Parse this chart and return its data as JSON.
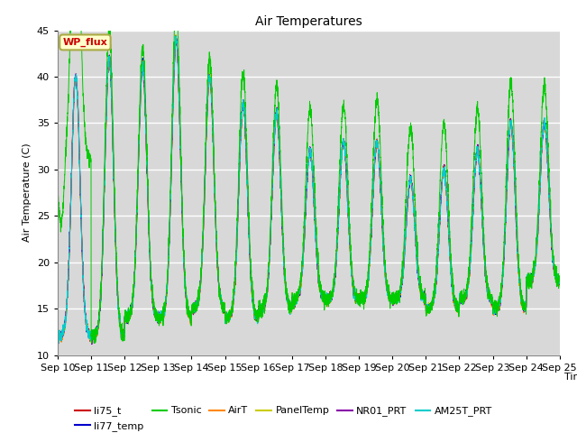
{
  "title": "Air Temperatures",
  "xlabel": "Time",
  "ylabel": "Air Temperature (C)",
  "ylim": [
    10,
    45
  ],
  "x_tick_labels": [
    "Sep 10",
    "Sep 11",
    "Sep 12",
    "Sep 13",
    "Sep 14",
    "Sep 15",
    "Sep 16",
    "Sep 17",
    "Sep 18",
    "Sep 19",
    "Sep 20",
    "Sep 21",
    "Sep 22",
    "Sep 23",
    "Sep 24",
    "Sep 25"
  ],
  "legend_entries": [
    {
      "label": "li75_t",
      "color": "#cc0000"
    },
    {
      "label": "li77_temp",
      "color": "#0000cc"
    },
    {
      "label": "Tsonic",
      "color": "#00cc00"
    },
    {
      "label": "AirT",
      "color": "#ff8800"
    },
    {
      "label": "PanelTemp",
      "color": "#cccc00"
    },
    {
      "label": "NR01_PRT",
      "color": "#8800aa"
    },
    {
      "label": "AM25T_PRT",
      "color": "#00cccc"
    }
  ],
  "wp_flux_box": {
    "text": "WP_flux",
    "facecolor": "#ffffcc",
    "edgecolor": "#aaaa44",
    "textcolor": "#cc0000"
  },
  "fig_bg_color": "#ffffff",
  "plot_bg_color": "#d8d8d8",
  "grid_color": "#ffffff",
  "n_days": 15,
  "spd": 288,
  "peaks": [
    40,
    42,
    41,
    44,
    40,
    37,
    36,
    32,
    33,
    33,
    29,
    30,
    32,
    35,
    35
  ],
  "mins": [
    12,
    12,
    14,
    14,
    15,
    14,
    15,
    16,
    16,
    16,
    16,
    15,
    16,
    15,
    18
  ],
  "tsonic_extra": [
    2.5,
    3.0,
    2.0,
    3.5,
    2.0,
    3.5,
    3.0,
    4.5,
    4.0,
    4.5,
    5.5,
    5.0,
    4.5,
    4.5,
    4.0
  ]
}
